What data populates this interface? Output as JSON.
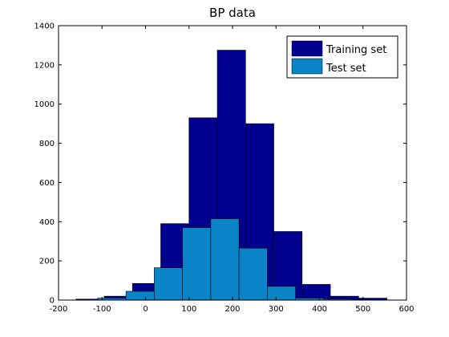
{
  "chart_data": {
    "type": "bar",
    "title": "BP data",
    "xlabel": "",
    "ylabel": "",
    "xlim": [
      -200,
      600
    ],
    "ylim": [
      0,
      1400
    ],
    "x_ticks": [
      -200,
      -100,
      0,
      100,
      200,
      300,
      400,
      500,
      600
    ],
    "y_ticks": [
      0,
      200,
      400,
      600,
      800,
      1000,
      1200,
      1400
    ],
    "grid": false,
    "legend_position": "top-right",
    "series": [
      {
        "name": "Training set",
        "color": "#00008F",
        "bins": [
          {
            "x0": -160,
            "x1": -95,
            "value": 5
          },
          {
            "x0": -95,
            "x1": -30,
            "value": 20
          },
          {
            "x0": -30,
            "x1": 35,
            "value": 85
          },
          {
            "x0": 35,
            "x1": 100,
            "value": 390
          },
          {
            "x0": 100,
            "x1": 165,
            "value": 930
          },
          {
            "x0": 165,
            "x1": 230,
            "value": 1275
          },
          {
            "x0": 230,
            "x1": 295,
            "value": 900
          },
          {
            "x0": 295,
            "x1": 360,
            "value": 350
          },
          {
            "x0": 360,
            "x1": 425,
            "value": 80
          },
          {
            "x0": 425,
            "x1": 490,
            "value": 20
          },
          {
            "x0": 490,
            "x1": 555,
            "value": 10
          }
        ]
      },
      {
        "name": "Test set",
        "color": "#0A84C6",
        "bins": [
          {
            "x0": -110,
            "x1": -45,
            "value": 10
          },
          {
            "x0": -45,
            "x1": 20,
            "value": 45
          },
          {
            "x0": 20,
            "x1": 85,
            "value": 165
          },
          {
            "x0": 85,
            "x1": 150,
            "value": 370
          },
          {
            "x0": 150,
            "x1": 215,
            "value": 415
          },
          {
            "x0": 215,
            "x1": 280,
            "value": 265
          },
          {
            "x0": 280,
            "x1": 345,
            "value": 70
          },
          {
            "x0": 345,
            "x1": 410,
            "value": 10
          },
          {
            "x0": 410,
            "x1": 475,
            "value": 5
          }
        ]
      }
    ]
  }
}
